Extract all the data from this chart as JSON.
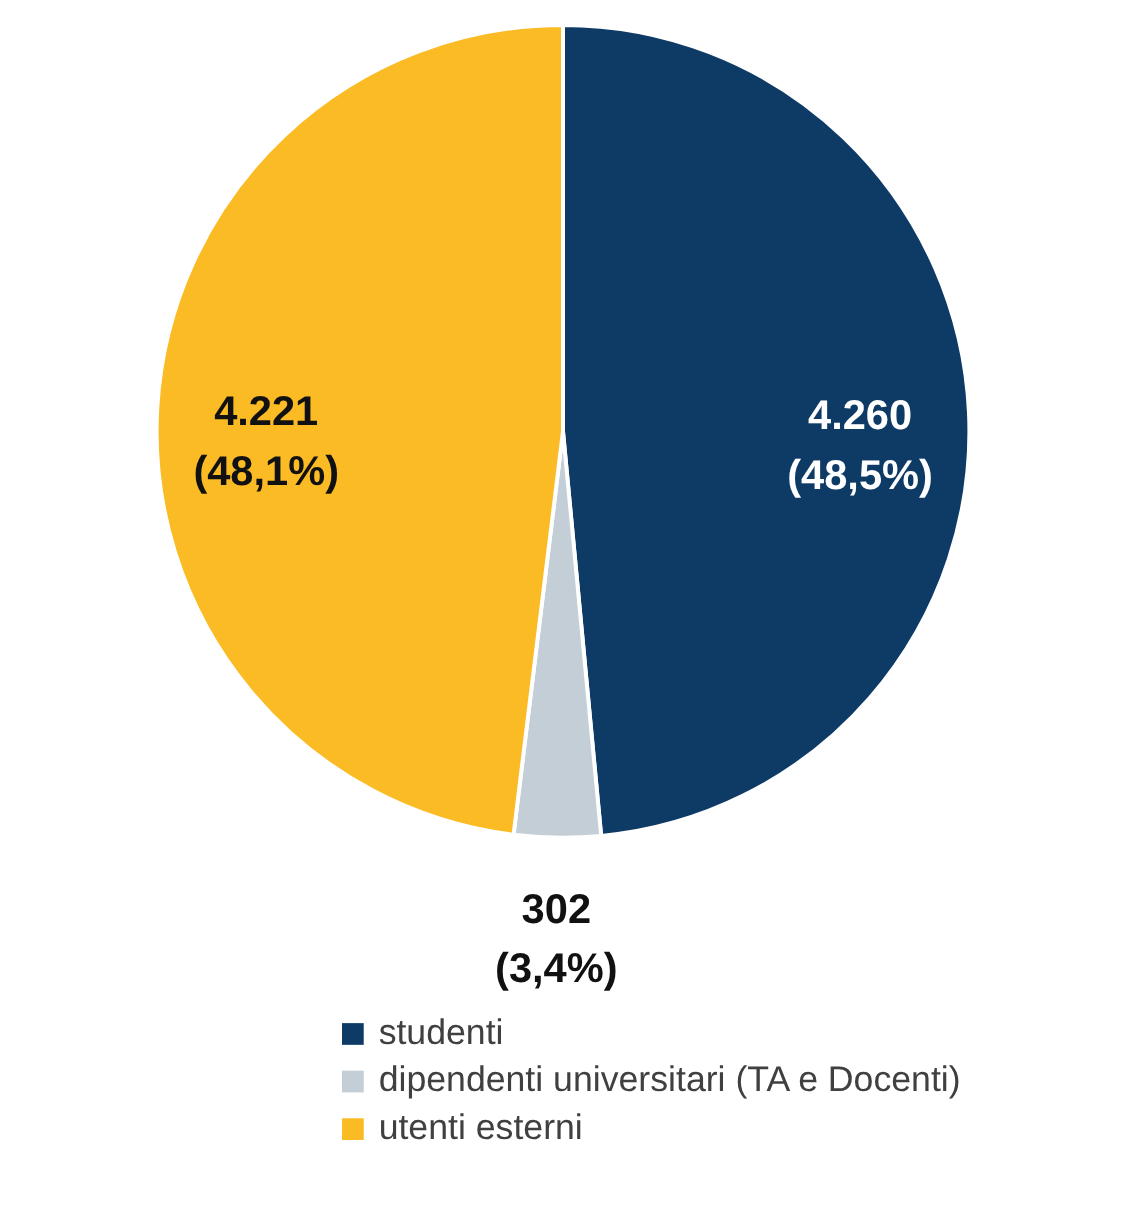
{
  "chart_data": {
    "type": "pie",
    "categories": [
      "studenti",
      "dipendenti universitari (TA e Docenti)",
      "utenti esterni"
    ],
    "values": [
      4260,
      302,
      4221
    ],
    "colors": [
      "#0e3b66",
      "#c3ced6",
      "#fbbb24"
    ],
    "value_labels": [
      "4.260\n(48,5%)",
      "302\n(3,4%)",
      "4.221\n(48,1%)"
    ],
    "legend": "bottom"
  }
}
